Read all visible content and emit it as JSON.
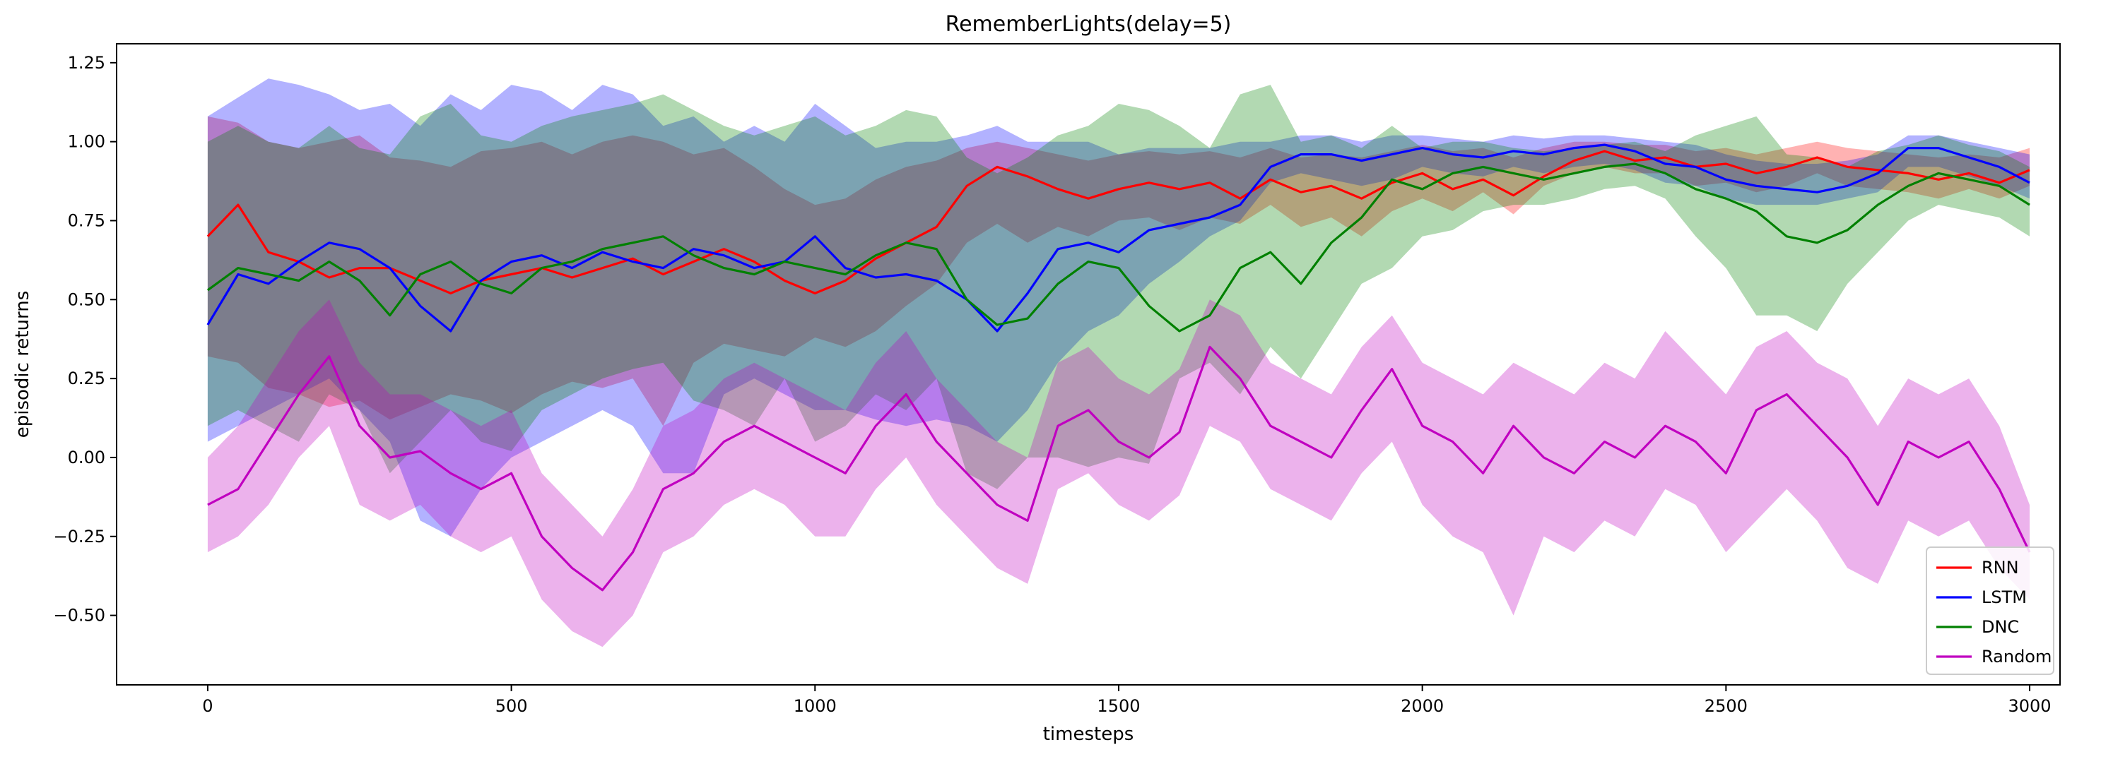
{
  "chart_data": {
    "type": "line",
    "title": "RememberLights(delay=5)",
    "xlabel": "timesteps",
    "ylabel": "episodic returns",
    "xlim": [
      -150,
      3050
    ],
    "ylim": [
      -0.72,
      1.31
    ],
    "xticks": [
      0,
      500,
      1000,
      1500,
      2000,
      2500,
      3000
    ],
    "xtick_labels": [
      "0",
      "500",
      "1000",
      "1500",
      "2000",
      "2500",
      "3000"
    ],
    "yticks": [
      -0.5,
      -0.25,
      0.0,
      0.25,
      0.5,
      0.75,
      1.0,
      1.25
    ],
    "ytick_labels": [
      "−0.50",
      "−0.25",
      "0.00",
      "0.25",
      "0.50",
      "0.75",
      "1.00",
      "1.25"
    ],
    "grid": false,
    "legend_position": "bottom-right",
    "x_step": 50,
    "x_start": 0,
    "series": [
      {
        "name": "RNN",
        "color": "#ff0000",
        "band_color": "#ff0000",
        "band_opacity": 0.3,
        "mean": [
          0.7,
          0.8,
          0.65,
          0.62,
          0.57,
          0.6,
          0.6,
          0.56,
          0.52,
          0.56,
          0.58,
          0.6,
          0.57,
          0.6,
          0.63,
          0.58,
          0.62,
          0.66,
          0.62,
          0.56,
          0.52,
          0.56,
          0.63,
          0.68,
          0.73,
          0.86,
          0.92,
          0.89,
          0.85,
          0.82,
          0.85,
          0.87,
          0.85,
          0.87,
          0.82,
          0.88,
          0.84,
          0.86,
          0.82,
          0.87,
          0.9,
          0.85,
          0.88,
          0.83,
          0.89,
          0.94,
          0.97,
          0.94,
          0.95,
          0.92,
          0.93,
          0.9,
          0.92,
          0.95,
          0.92,
          0.91,
          0.9,
          0.88,
          0.9,
          0.87,
          0.91
        ],
        "lower": [
          0.32,
          0.3,
          0.22,
          0.2,
          0.16,
          0.18,
          0.12,
          0.16,
          0.2,
          0.18,
          0.14,
          0.2,
          0.24,
          0.22,
          0.25,
          0.1,
          0.3,
          0.36,
          0.34,
          0.32,
          0.38,
          0.35,
          0.4,
          0.48,
          0.55,
          0.68,
          0.74,
          0.68,
          0.73,
          0.7,
          0.75,
          0.76,
          0.72,
          0.76,
          0.74,
          0.8,
          0.73,
          0.76,
          0.7,
          0.78,
          0.82,
          0.78,
          0.84,
          0.77,
          0.86,
          0.9,
          0.92,
          0.9,
          0.9,
          0.86,
          0.87,
          0.84,
          0.86,
          0.9,
          0.86,
          0.85,
          0.84,
          0.82,
          0.85,
          0.82,
          0.86
        ],
        "upper": [
          1.08,
          1.06,
          1.0,
          0.98,
          1.0,
          1.02,
          0.95,
          0.94,
          0.92,
          0.97,
          0.98,
          1.0,
          0.96,
          1.0,
          1.02,
          1.0,
          0.96,
          0.98,
          0.92,
          0.85,
          0.8,
          0.82,
          0.88,
          0.92,
          0.94,
          0.98,
          1.0,
          0.98,
          0.96,
          0.94,
          0.96,
          0.97,
          0.96,
          0.97,
          0.95,
          0.98,
          0.95,
          0.96,
          0.95,
          0.97,
          0.99,
          0.97,
          0.98,
          0.95,
          0.98,
          1.0,
          1.0,
          0.99,
          0.99,
          0.97,
          0.98,
          0.96,
          0.98,
          1.0,
          0.98,
          0.97,
          0.96,
          0.95,
          0.96,
          0.95,
          0.98
        ]
      },
      {
        "name": "LSTM",
        "color": "#0000ff",
        "band_color": "#0000ff",
        "band_opacity": 0.3,
        "mean": [
          0.42,
          0.58,
          0.55,
          0.62,
          0.68,
          0.66,
          0.6,
          0.48,
          0.4,
          0.56,
          0.62,
          0.64,
          0.6,
          0.65,
          0.62,
          0.6,
          0.66,
          0.64,
          0.6,
          0.62,
          0.7,
          0.6,
          0.57,
          0.58,
          0.56,
          0.5,
          0.4,
          0.52,
          0.66,
          0.68,
          0.65,
          0.72,
          0.74,
          0.76,
          0.8,
          0.92,
          0.96,
          0.96,
          0.94,
          0.96,
          0.98,
          0.96,
          0.95,
          0.97,
          0.96,
          0.98,
          0.99,
          0.97,
          0.93,
          0.92,
          0.88,
          0.86,
          0.85,
          0.84,
          0.86,
          0.9,
          0.98,
          0.98,
          0.95,
          0.92,
          0.87
        ],
        "lower": [
          0.05,
          0.1,
          0.15,
          0.2,
          0.25,
          0.15,
          0.05,
          -0.2,
          -0.25,
          -0.1,
          0.0,
          0.05,
          0.1,
          0.15,
          0.1,
          -0.05,
          -0.05,
          0.2,
          0.25,
          0.2,
          0.15,
          0.15,
          0.12,
          0.1,
          0.12,
          0.1,
          0.05,
          0.15,
          0.3,
          0.4,
          0.45,
          0.55,
          0.62,
          0.7,
          0.75,
          0.87,
          0.9,
          0.88,
          0.86,
          0.88,
          0.92,
          0.9,
          0.89,
          0.92,
          0.9,
          0.92,
          0.93,
          0.91,
          0.87,
          0.86,
          0.82,
          0.8,
          0.8,
          0.8,
          0.82,
          0.84,
          0.92,
          0.92,
          0.89,
          0.86,
          0.82
        ],
        "upper": [
          1.08,
          1.14,
          1.2,
          1.18,
          1.15,
          1.1,
          1.12,
          1.05,
          1.15,
          1.1,
          1.18,
          1.16,
          1.1,
          1.18,
          1.15,
          1.05,
          1.08,
          1.0,
          1.05,
          1.0,
          1.12,
          1.05,
          0.98,
          1.0,
          1.0,
          1.02,
          1.05,
          1.0,
          1.0,
          1.0,
          0.96,
          0.98,
          0.98,
          0.98,
          1.0,
          1.0,
          1.02,
          1.02,
          1.0,
          1.02,
          1.02,
          1.01,
          1.0,
          1.02,
          1.01,
          1.02,
          1.02,
          1.01,
          1.0,
          0.99,
          0.96,
          0.94,
          0.93,
          0.93,
          0.94,
          0.96,
          1.02,
          1.02,
          1.0,
          0.98,
          0.96
        ]
      },
      {
        "name": "DNC",
        "color": "#008000",
        "band_color": "#008000",
        "band_opacity": 0.3,
        "mean": [
          0.53,
          0.6,
          0.58,
          0.56,
          0.62,
          0.56,
          0.45,
          0.58,
          0.62,
          0.55,
          0.52,
          0.6,
          0.62,
          0.66,
          0.68,
          0.7,
          0.64,
          0.6,
          0.58,
          0.62,
          0.6,
          0.58,
          0.64,
          0.68,
          0.66,
          0.5,
          0.42,
          0.44,
          0.55,
          0.62,
          0.6,
          0.48,
          0.4,
          0.45,
          0.6,
          0.65,
          0.55,
          0.68,
          0.76,
          0.88,
          0.85,
          0.9,
          0.92,
          0.9,
          0.88,
          0.9,
          0.92,
          0.93,
          0.9,
          0.85,
          0.82,
          0.78,
          0.7,
          0.68,
          0.72,
          0.8,
          0.86,
          0.9,
          0.88,
          0.86,
          0.8
        ],
        "lower": [
          0.1,
          0.15,
          0.1,
          0.05,
          0.2,
          0.15,
          -0.05,
          0.05,
          0.15,
          0.05,
          0.02,
          0.15,
          0.2,
          0.25,
          0.28,
          0.3,
          0.18,
          0.15,
          0.1,
          0.25,
          0.05,
          0.1,
          0.2,
          0.15,
          0.25,
          -0.05,
          -0.1,
          0.0,
          0.0,
          -0.03,
          0.0,
          -0.02,
          0.25,
          0.3,
          0.2,
          0.35,
          0.25,
          0.4,
          0.55,
          0.6,
          0.7,
          0.72,
          0.78,
          0.8,
          0.8,
          0.82,
          0.85,
          0.86,
          0.82,
          0.7,
          0.6,
          0.45,
          0.45,
          0.4,
          0.55,
          0.65,
          0.75,
          0.8,
          0.78,
          0.76,
          0.7
        ],
        "upper": [
          1.0,
          1.05,
          1.0,
          0.98,
          1.05,
          0.98,
          0.96,
          1.08,
          1.12,
          1.02,
          1.0,
          1.05,
          1.08,
          1.1,
          1.12,
          1.15,
          1.1,
          1.05,
          1.02,
          1.05,
          1.08,
          1.02,
          1.05,
          1.1,
          1.08,
          0.95,
          0.9,
          0.95,
          1.02,
          1.05,
          1.12,
          1.1,
          1.05,
          0.98,
          1.15,
          1.18,
          1.0,
          1.02,
          0.98,
          1.05,
          0.98,
          1.0,
          1.0,
          0.98,
          0.97,
          0.98,
          0.99,
          1.0,
          0.97,
          1.02,
          1.05,
          1.08,
          0.96,
          0.95,
          0.92,
          0.97,
          0.99,
          1.02,
          0.99,
          0.97,
          0.92
        ]
      },
      {
        "name": "Random",
        "color": "#c000c0",
        "band_color": "#c000c0",
        "band_opacity": 0.3,
        "mean": [
          -0.15,
          -0.1,
          0.05,
          0.2,
          0.32,
          0.1,
          0.0,
          0.02,
          -0.05,
          -0.1,
          -0.05,
          -0.25,
          -0.35,
          -0.42,
          -0.3,
          -0.1,
          -0.05,
          0.05,
          0.1,
          0.05,
          0.0,
          -0.05,
          0.1,
          0.2,
          0.05,
          -0.05,
          -0.15,
          -0.2,
          0.1,
          0.15,
          0.05,
          0.0,
          0.08,
          0.35,
          0.25,
          0.1,
          0.05,
          0.0,
          0.15,
          0.28,
          0.1,
          0.05,
          -0.05,
          0.1,
          0.0,
          -0.05,
          0.05,
          0.0,
          0.1,
          0.05,
          -0.05,
          0.15,
          0.2,
          0.1,
          0.0,
          -0.15,
          0.05,
          0.0,
          0.05,
          -0.1,
          -0.3
        ],
        "lower": [
          -0.3,
          -0.25,
          -0.15,
          0.0,
          0.1,
          -0.15,
          -0.2,
          -0.15,
          -0.25,
          -0.3,
          -0.25,
          -0.45,
          -0.55,
          -0.6,
          -0.5,
          -0.3,
          -0.25,
          -0.15,
          -0.1,
          -0.15,
          -0.25,
          -0.25,
          -0.1,
          0.0,
          -0.15,
          -0.25,
          -0.35,
          -0.4,
          -0.1,
          -0.05,
          -0.15,
          -0.2,
          -0.12,
          0.1,
          0.05,
          -0.1,
          -0.15,
          -0.2,
          -0.05,
          0.05,
          -0.15,
          -0.25,
          -0.3,
          -0.5,
          -0.25,
          -0.3,
          -0.2,
          -0.25,
          -0.1,
          -0.15,
          -0.3,
          -0.2,
          -0.1,
          -0.2,
          -0.35,
          -0.4,
          -0.2,
          -0.25,
          -0.2,
          -0.35,
          -0.45
        ],
        "upper": [
          0.0,
          0.1,
          0.25,
          0.4,
          0.5,
          0.3,
          0.2,
          0.2,
          0.15,
          0.1,
          0.15,
          -0.05,
          -0.15,
          -0.25,
          -0.1,
          0.1,
          0.15,
          0.25,
          0.3,
          0.25,
          0.2,
          0.15,
          0.3,
          0.4,
          0.25,
          0.15,
          0.05,
          0.0,
          0.3,
          0.35,
          0.25,
          0.2,
          0.28,
          0.5,
          0.45,
          0.3,
          0.25,
          0.2,
          0.35,
          0.45,
          0.3,
          0.25,
          0.2,
          0.3,
          0.25,
          0.2,
          0.3,
          0.25,
          0.4,
          0.3,
          0.2,
          0.35,
          0.4,
          0.3,
          0.25,
          0.1,
          0.25,
          0.2,
          0.25,
          0.1,
          -0.15
        ]
      }
    ]
  }
}
